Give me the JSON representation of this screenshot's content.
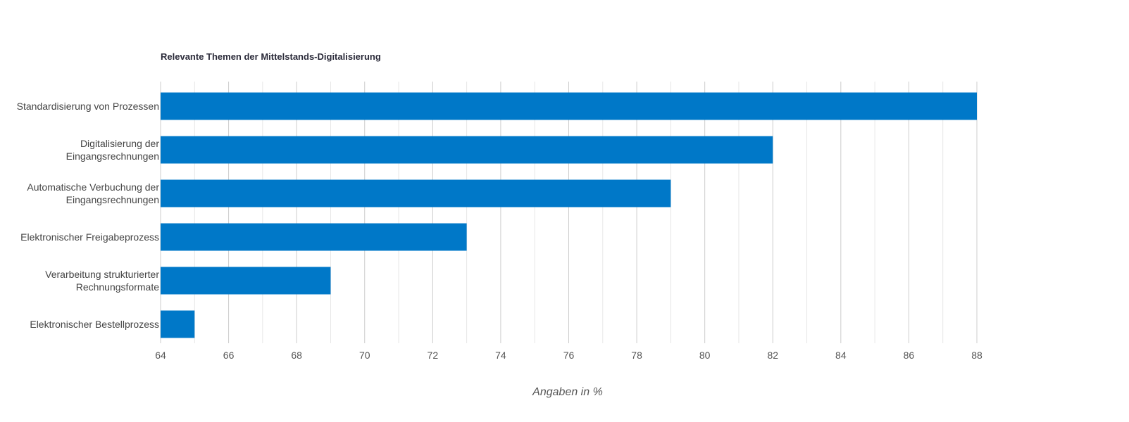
{
  "chart_data": {
    "type": "bar",
    "orientation": "horizontal",
    "title": "Relevante Themen der Mittelstands-Digitalisierung",
    "xlabel": "Angaben in %",
    "ylabel": "",
    "categories": [
      [
        "Standardisierung von Prozessen"
      ],
      [
        "Digitalisierung der",
        "Eingangsrechnungen"
      ],
      [
        "Automatische Verbuchung der",
        "Eingangsrechnungen"
      ],
      [
        "Elektronischer Freigabeprozess"
      ],
      [
        "Verarbeitung strukturierter",
        "Rechnungsformate"
      ],
      [
        "Elektronischer Bestellprozess"
      ]
    ],
    "values": [
      88,
      82,
      79,
      73,
      69,
      65
    ],
    "xlim": [
      64,
      88
    ],
    "xticks": [
      "64",
      "66",
      "68",
      "70",
      "72",
      "74",
      "76",
      "78",
      "80",
      "82",
      "84",
      "86",
      "88"
    ],
    "grid": true,
    "legend": "none",
    "bar_color": "#0078c8",
    "grid_major_color": "#cccccc",
    "grid_minor_color": "#e6e6e6"
  }
}
